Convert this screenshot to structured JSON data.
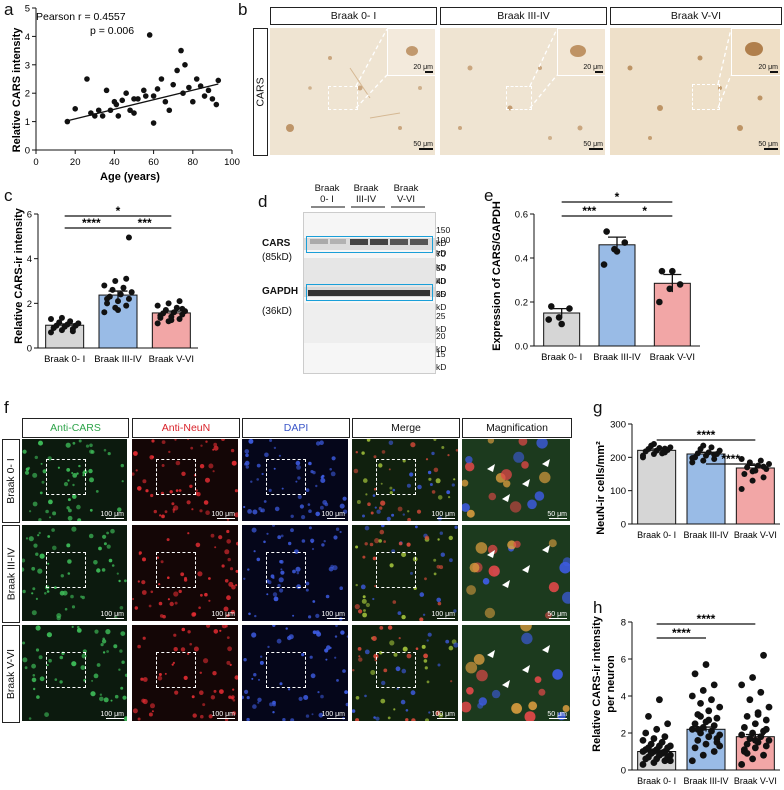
{
  "panels": {
    "a": "a",
    "b": "b",
    "c": "c",
    "d": "d",
    "e": "e",
    "f": "f",
    "g": "g",
    "h": "h"
  },
  "colors": {
    "gray": "#d6d6d6",
    "blue": "#99bbe6",
    "pink": "#f2a6a6",
    "cars_green": "#2ea44a",
    "neun_red": "#d9222a",
    "dapi_blue": "#3a55c8",
    "blot_box": "#1a9fd8"
  },
  "panel_a": {
    "pearson": "Pearson r = 0.4557",
    "p": "p = 0.006",
    "xlabel": "Age (years)",
    "ylabel": "Relative CARS intensity"
  },
  "panel_b": {
    "headers": [
      "Braak 0- I",
      "Braak III-IV",
      "Braak V-VI"
    ],
    "row_label": "CARS",
    "scale_inset": "20 μm",
    "scale_main": "50 μm"
  },
  "panel_c": {
    "ylabel": "Relative CARS-ir intensity"
  },
  "panel_d": {
    "lanes": [
      "Braak\n0- I",
      "Braak\nIII-IV",
      "Braak\nV-VI"
    ],
    "cars_label": "CARS",
    "cars_kd": "(85kD)",
    "gapdh_label": "GAPDH",
    "gapdh_kd": "(36kD)",
    "markers": [
      "150 kD",
      "100 kD",
      "70 kD",
      "50 kD",
      "40 kD",
      "35 kD",
      "25 kD",
      "20 kD",
      "15 kD"
    ]
  },
  "panel_e": {
    "ylabel": "Expression of CARS/GAPDH"
  },
  "panel_f": {
    "headers": [
      "Anti-CARS",
      "Anti-NeuN",
      "DAPI",
      "Merge",
      "Magnification"
    ],
    "rows": [
      "Braak 0- I",
      "Braak III-IV",
      "Braak V-VI"
    ],
    "scale_main": "100 μm",
    "scale_mag": "50 μm"
  },
  "panel_g": {
    "ylabel": "NeuN-ir cells/mm²"
  },
  "panel_h": {
    "ylabel1": "Relative CARS-ir intensity",
    "ylabel2": "per neuron"
  },
  "chart_data": [
    {
      "id": "a",
      "type": "scatter",
      "title": "",
      "xlabel": "Age (years)",
      "ylabel": "Relative CARS intensity",
      "xlim": [
        0,
        100
      ],
      "ylim": [
        0,
        5
      ],
      "xticks": [
        0,
        20,
        40,
        60,
        80,
        100
      ],
      "yticks": [
        0,
        1,
        2,
        3,
        4,
        5
      ],
      "annotations": [
        "Pearson r = 0.4557",
        "p = 0.006"
      ],
      "x": [
        16,
        20,
        26,
        28,
        30,
        32,
        34,
        36,
        38,
        40,
        41,
        42,
        44,
        46,
        48,
        50,
        50,
        52,
        55,
        56,
        58,
        60,
        60,
        62,
        64,
        66,
        68,
        70,
        72,
        74,
        75,
        76,
        78,
        80,
        82,
        84,
        86,
        88,
        90,
        92,
        93
      ],
      "y": [
        1.0,
        1.45,
        2.5,
        1.3,
        1.2,
        1.4,
        1.2,
        2.1,
        1.4,
        1.7,
        1.6,
        1.2,
        1.75,
        2.0,
        1.4,
        1.3,
        1.8,
        1.8,
        2.1,
        1.9,
        4.05,
        0.95,
        1.9,
        2.15,
        2.5,
        1.7,
        1.4,
        2.3,
        2.8,
        3.5,
        2.0,
        3.0,
        2.2,
        1.7,
        2.5,
        2.25,
        1.9,
        2.1,
        1.8,
        1.6,
        2.45
      ],
      "fit": {
        "slope": 0.01683,
        "intercept": 0.76
      }
    },
    {
      "id": "c",
      "type": "bar",
      "ylabel": "Relative CARS-ir intensity",
      "categories": [
        "Braak 0- I",
        "Braak III-IV",
        "Braak V-VI"
      ],
      "values": [
        1.02,
        2.37,
        1.57
      ],
      "errors": [
        0.06,
        0.18,
        0.08
      ],
      "ylim": [
        0,
        6
      ],
      "yticks": [
        0,
        2,
        4,
        6
      ],
      "points": [
        [
          0.7,
          0.8,
          0.85,
          0.9,
          0.95,
          1.0,
          1.0,
          1.05,
          1.1,
          1.15,
          1.2,
          1.3,
          1.35,
          0.75,
          0.9
        ],
        [
          1.6,
          1.8,
          1.9,
          2.0,
          2.1,
          2.2,
          2.3,
          2.4,
          2.5,
          2.6,
          2.7,
          2.8,
          3.0,
          3.1,
          2.2,
          1.7,
          4.95
        ],
        [
          1.1,
          1.2,
          1.3,
          1.35,
          1.4,
          1.5,
          1.55,
          1.6,
          1.65,
          1.7,
          1.8,
          1.9,
          2.0,
          2.1,
          1.45,
          1.25,
          1.75
        ]
      ],
      "significance": [
        {
          "pair": [
            "Braak 0- I",
            "Braak III-IV"
          ],
          "label": "****"
        },
        {
          "pair": [
            "Braak III-IV",
            "Braak V-VI"
          ],
          "label": "***"
        },
        {
          "pair": [
            "Braak 0- I",
            "Braak V-VI"
          ],
          "label": "*"
        }
      ]
    },
    {
      "id": "e",
      "type": "bar",
      "ylabel": "Expression of CARS/GAPDH",
      "categories": [
        "Braak 0- I",
        "Braak III-IV",
        "Braak V-VI"
      ],
      "values": [
        0.15,
        0.46,
        0.285
      ],
      "errors": [
        0.02,
        0.035,
        0.04
      ],
      "ylim": [
        0,
        0.6
      ],
      "yticks": [
        0.0,
        0.2,
        0.4,
        0.6
      ],
      "points": [
        [
          0.12,
          0.13,
          0.17,
          0.18,
          0.1
        ],
        [
          0.37,
          0.44,
          0.47,
          0.52,
          0.43
        ],
        [
          0.2,
          0.26,
          0.28,
          0.34,
          0.34
        ]
      ],
      "significance": [
        {
          "pair": [
            "Braak 0- I",
            "Braak III-IV"
          ],
          "label": "***"
        },
        {
          "pair": [
            "Braak III-IV",
            "Braak V-VI"
          ],
          "label": "*"
        },
        {
          "pair": [
            "Braak 0- I",
            "Braak V-VI"
          ],
          "label": "*"
        }
      ]
    },
    {
      "id": "g",
      "type": "bar",
      "ylabel": "NeuN-ir cells/mm²",
      "categories": [
        "Braak 0- I",
        "Braak III-IV",
        "Braak V-VI"
      ],
      "values": [
        221,
        210,
        168
      ],
      "errors": [
        4,
        5,
        8
      ],
      "ylim": [
        0,
        300
      ],
      "yticks": [
        0,
        100,
        200,
        300
      ],
      "points": [
        [
          205,
          210,
          215,
          218,
          220,
          222,
          225,
          228,
          230,
          235,
          212,
          200,
          240,
          226
        ],
        [
          185,
          190,
          195,
          200,
          205,
          210,
          212,
          215,
          220,
          225,
          230,
          198,
          235,
          208
        ],
        [
          105,
          130,
          140,
          150,
          160,
          165,
          170,
          175,
          180,
          185,
          190,
          195,
          158,
          172
        ]
      ],
      "significance": [
        {
          "pair": [
            "Braak 0- I",
            "Braak V-VI"
          ],
          "label": "****"
        },
        {
          "pair": [
            "Braak III-IV",
            "Braak V-VI"
          ],
          "label": "****"
        }
      ]
    },
    {
      "id": "h",
      "type": "bar",
      "ylabel": "Relative CARS-ir intensity per neuron",
      "categories": [
        "Braak 0- I",
        "Braak III-IV",
        "Braak V-VI"
      ],
      "values": [
        1.0,
        2.2,
        1.8
      ],
      "errors": [
        0.07,
        0.12,
        0.12
      ],
      "ylim": [
        0,
        8
      ],
      "yticks": [
        0,
        2,
        4,
        6,
        8
      ],
      "points": [
        [
          0.3,
          0.4,
          0.5,
          0.6,
          0.6,
          0.7,
          0.7,
          0.8,
          0.8,
          0.9,
          0.9,
          1.0,
          1.0,
          1.0,
          1.1,
          1.1,
          1.2,
          1.2,
          1.3,
          1.3,
          1.4,
          1.5,
          1.6,
          1.7,
          1.8,
          2.0,
          2.2,
          2.5,
          2.9,
          3.8,
          0.5,
          0.9
        ],
        [
          0.5,
          0.8,
          1.0,
          1.2,
          1.4,
          1.5,
          1.6,
          1.8,
          1.9,
          2.0,
          2.1,
          2.2,
          2.3,
          2.4,
          2.5,
          2.6,
          2.8,
          3.0,
          3.2,
          3.4,
          3.6,
          3.8,
          4.0,
          4.3,
          4.6,
          5.2,
          5.7,
          1.7,
          2.2,
          2.7,
          1.3,
          2.9
        ],
        [
          0.3,
          0.6,
          0.8,
          1.0,
          1.2,
          1.3,
          1.4,
          1.5,
          1.6,
          1.7,
          1.8,
          1.9,
          2.0,
          2.1,
          2.3,
          2.5,
          2.7,
          2.9,
          3.1,
          3.4,
          3.8,
          4.2,
          4.6,
          5.0,
          6.2,
          1.1,
          1.6,
          2.2,
          0.9,
          3.0
        ]
      ],
      "significance": [
        {
          "pair": [
            "Braak 0- I",
            "Braak III-IV"
          ],
          "label": "****"
        },
        {
          "pair": [
            "Braak 0- I",
            "Braak V-VI"
          ],
          "label": "****"
        }
      ]
    }
  ]
}
